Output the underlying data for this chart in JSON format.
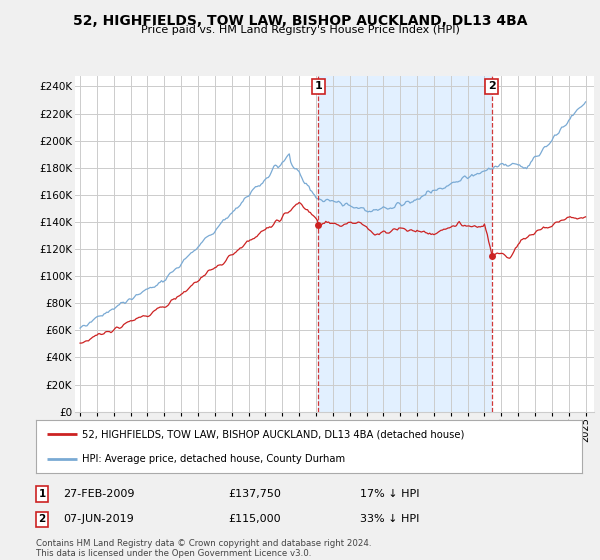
{
  "title": "52, HIGHFIELDS, TOW LAW, BISHOP AUCKLAND, DL13 4BA",
  "subtitle": "Price paid vs. HM Land Registry's House Price Index (HPI)",
  "ylabel_ticks": [
    "£0",
    "£20K",
    "£40K",
    "£60K",
    "£80K",
    "£100K",
    "£120K",
    "£140K",
    "£160K",
    "£180K",
    "£200K",
    "£220K",
    "£240K"
  ],
  "ytick_values": [
    0,
    20000,
    40000,
    60000,
    80000,
    100000,
    120000,
    140000,
    160000,
    180000,
    200000,
    220000,
    240000
  ],
  "ylim": [
    0,
    248000
  ],
  "xlim_start": 1994.7,
  "xlim_end": 2025.5,
  "hpi_color": "#7aaad4",
  "hpi_fill_color": "#ddeeff",
  "price_color": "#cc2222",
  "marker1_date": 2009.15,
  "marker1_price": 137750,
  "marker2_date": 2019.43,
  "marker2_price": 115000,
  "legend_line1": "52, HIGHFIELDS, TOW LAW, BISHOP AUCKLAND, DL13 4BA (detached house)",
  "legend_line2": "HPI: Average price, detached house, County Durham",
  "footnote": "Contains HM Land Registry data © Crown copyright and database right 2024.\nThis data is licensed under the Open Government Licence v3.0.",
  "background_color": "#f0f0f0",
  "plot_background": "#ffffff",
  "grid_color": "#cccccc",
  "xtick_years": [
    1995,
    1996,
    1997,
    1998,
    1999,
    2000,
    2001,
    2002,
    2003,
    2004,
    2005,
    2006,
    2007,
    2008,
    2009,
    2010,
    2011,
    2012,
    2013,
    2014,
    2015,
    2016,
    2017,
    2018,
    2019,
    2020,
    2021,
    2022,
    2023,
    2024,
    2025
  ]
}
